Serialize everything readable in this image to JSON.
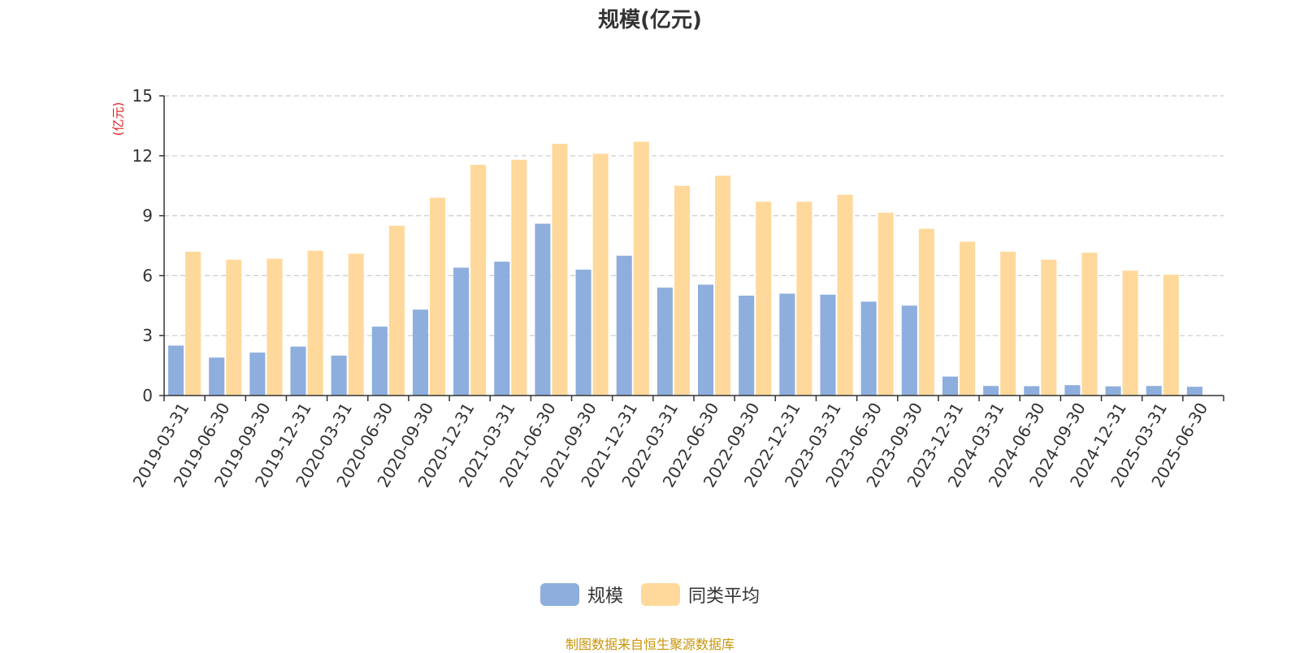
{
  "colors": {
    "series_1": "#8eaedd",
    "series_2": "#ffd99b",
    "axis": "#333333",
    "grid": "#cccccc",
    "unit": "#e02020",
    "source": "#c8960a"
  },
  "legend": {
    "series_1": "规模",
    "series_2": "同类平均"
  },
  "source_note": "制图数据来自恒生聚源数据库",
  "chart_data": {
    "type": "bar",
    "title": "规模(亿元)",
    "ylabel": "(亿元)",
    "xlabel": "",
    "ylim": [
      0,
      15
    ],
    "yticks": [
      0,
      3,
      6,
      9,
      12,
      15
    ],
    "grid": true,
    "legend_position": "bottom",
    "categories": [
      "2019-03-31",
      "2019-06-30",
      "2019-09-30",
      "2019-12-31",
      "2020-03-31",
      "2020-06-30",
      "2020-09-30",
      "2020-12-31",
      "2021-03-31",
      "2021-06-30",
      "2021-09-30",
      "2021-12-31",
      "2022-03-31",
      "2022-06-30",
      "2022-09-30",
      "2022-12-31",
      "2023-03-31",
      "2023-06-30",
      "2023-09-30",
      "2023-12-31",
      "2024-03-31",
      "2024-06-30",
      "2024-09-30",
      "2024-12-31",
      "2025-03-31",
      "2025-06-30"
    ],
    "series": [
      {
        "name": "规模",
        "values": [
          2.5,
          1.9,
          2.15,
          2.45,
          2.0,
          3.45,
          4.3,
          6.4,
          6.7,
          8.6,
          6.3,
          7.0,
          5.4,
          5.55,
          5.0,
          5.1,
          5.05,
          4.7,
          4.5,
          0.95,
          0.48,
          0.47,
          0.52,
          0.46,
          0.48,
          0.44
        ]
      },
      {
        "name": "同类平均",
        "values": [
          7.2,
          6.8,
          6.85,
          7.25,
          7.1,
          8.5,
          9.9,
          11.55,
          11.8,
          12.6,
          12.1,
          12.7,
          10.5,
          11.0,
          9.7,
          9.7,
          10.05,
          9.15,
          8.35,
          7.7,
          7.2,
          6.8,
          7.15,
          6.25,
          6.05,
          null
        ]
      }
    ]
  }
}
